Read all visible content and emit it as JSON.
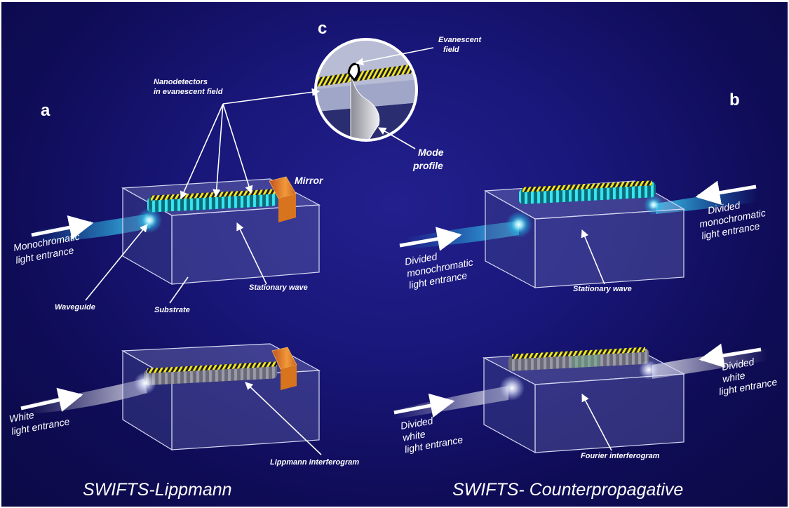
{
  "panels": {
    "a": "a",
    "b": "b",
    "c": "c"
  },
  "titles": {
    "left": "SWIFTS-Lippmann",
    "right": "SWIFTS- Counterpropagative"
  },
  "labels": {
    "nanodetectors": [
      "Nanodetectors",
      "in evanescent  field"
    ],
    "evanescent": [
      "Evanescent",
      "field"
    ],
    "mode_profile": [
      "Mode",
      "profile"
    ],
    "mirror": "Mirror",
    "mono_entrance": [
      "Monochromatic",
      "light entrance"
    ],
    "waveguide": "Waveguide",
    "substrate": "Substrate",
    "stationary_wave_a": "Stationary wave",
    "white_entrance": [
      "White",
      "light entrance"
    ],
    "lippmann": "Lippmann interferogram",
    "divided_mono_left": [
      "Divided",
      "monochromatic",
      "light entrance"
    ],
    "divided_mono_right": [
      "Divided",
      "monochromatic",
      "light entrance"
    ],
    "stationary_wave_b": "Stationary wave",
    "divided_white_left": [
      "Divided",
      "white",
      "light entrance"
    ],
    "divided_white_right": [
      "Divided",
      "white",
      "light entrance"
    ],
    "fourier": "Fourier interferogram"
  },
  "colors": {
    "background": "#19177a",
    "detector_yellow": "#f2e81c",
    "beam_cyan": "#3fe0ff",
    "mirror_orange": "#e07a20"
  }
}
